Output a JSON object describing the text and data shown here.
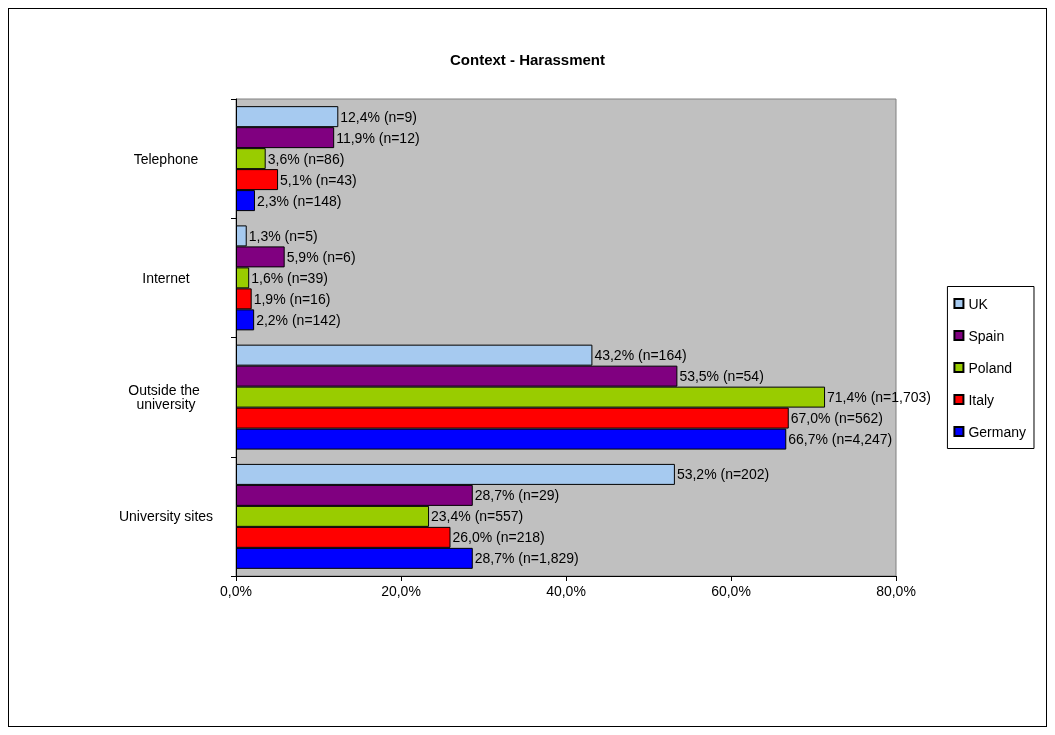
{
  "chart_data": {
    "type": "bar",
    "orientation": "horizontal",
    "title": "Context - Harassment",
    "categories": [
      "Telephone",
      "Internet",
      "Outside the university",
      "University sites"
    ],
    "series": [
      {
        "name": "UK",
        "color": "#a6caf0",
        "values": [
          12.4,
          1.3,
          43.2,
          53.2
        ],
        "value_labels": [
          "12,4% (n=9)",
          "1,3% (n=5)",
          "43,2% (n=164)",
          "53,2% (n=202)"
        ]
      },
      {
        "name": "Spain",
        "color": "#800080",
        "values": [
          11.9,
          5.9,
          53.5,
          28.7
        ],
        "value_labels": [
          "11,9% (n=12)",
          "5,9% (n=6)",
          "53,5% (n=54)",
          "28,7% (n=29)"
        ]
      },
      {
        "name": "Poland",
        "color": "#99cc00",
        "values": [
          3.6,
          1.6,
          71.4,
          23.4
        ],
        "value_labels": [
          "3,6% (n=86)",
          "1,6% (n=39)",
          "71,4% (n=1,703)",
          "23,4% (n=557)"
        ]
      },
      {
        "name": "Italy",
        "color": "#ff0000",
        "values": [
          5.1,
          1.9,
          67.0,
          26.0
        ],
        "value_labels": [
          "5,1% (n=43)",
          "1,9% (n=16)",
          "67,0% (n=562)",
          "26,0% (n=218)"
        ]
      },
      {
        "name": "Germany",
        "color": "#0000ff",
        "values": [
          2.3,
          2.2,
          66.7,
          28.7
        ],
        "value_labels": [
          "2,3% (n=148)",
          "2,2% (n=142)",
          "66,7% (n=4,247)",
          "28,7% (n=1,829)"
        ]
      }
    ],
    "xlim": [
      0,
      80
    ],
    "xticks": [
      {
        "value": 0,
        "label": "0,0%"
      },
      {
        "value": 20,
        "label": "20,0%"
      },
      {
        "value": 40,
        "label": "40,0%"
      },
      {
        "value": 60,
        "label": "60,0%"
      },
      {
        "value": 80,
        "label": "80,0%"
      }
    ],
    "grid": false,
    "legend": "right"
  }
}
